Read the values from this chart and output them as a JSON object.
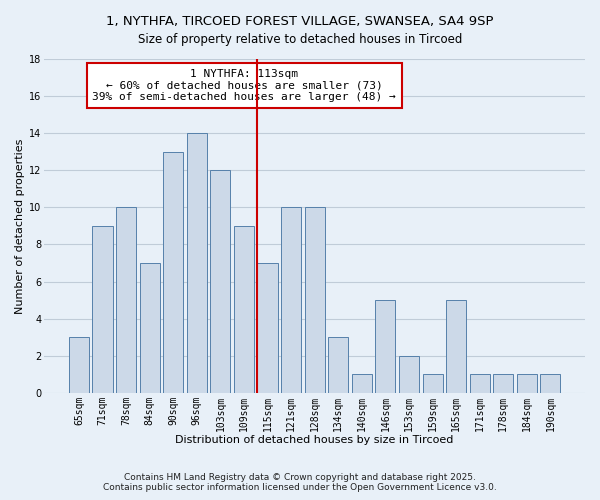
{
  "title": "1, NYTHFA, TIRCOED FOREST VILLAGE, SWANSEA, SA4 9SP",
  "subtitle": "Size of property relative to detached houses in Tircoed",
  "xlabel": "Distribution of detached houses by size in Tircoed",
  "ylabel": "Number of detached properties",
  "bar_labels": [
    "65sqm",
    "71sqm",
    "78sqm",
    "84sqm",
    "90sqm",
    "96sqm",
    "103sqm",
    "109sqm",
    "115sqm",
    "121sqm",
    "128sqm",
    "134sqm",
    "140sqm",
    "146sqm",
    "153sqm",
    "159sqm",
    "165sqm",
    "171sqm",
    "178sqm",
    "184sqm",
    "190sqm"
  ],
  "bar_values": [
    3,
    9,
    10,
    7,
    13,
    14,
    12,
    9,
    7,
    10,
    10,
    3,
    1,
    5,
    2,
    1,
    5,
    1,
    1,
    1,
    1
  ],
  "bar_color": "#ccd9e8",
  "bar_edge_color": "#5580aa",
  "vline_x_index": 8,
  "vline_color": "#cc0000",
  "ylim": [
    0,
    18
  ],
  "yticks": [
    0,
    2,
    4,
    6,
    8,
    10,
    12,
    14,
    16,
    18
  ],
  "annotation_title": "1 NYTHFA: 113sqm",
  "annotation_line1": "← 60% of detached houses are smaller (73)",
  "annotation_line2": "39% of semi-detached houses are larger (48) →",
  "footnote1": "Contains HM Land Registry data © Crown copyright and database right 2025.",
  "footnote2": "Contains public sector information licensed under the Open Government Licence v3.0.",
  "bg_color": "#e8f0f8",
  "plot_bg_color": "#e8f0f8",
  "grid_color": "#c0ccd8",
  "title_fontsize": 9.5,
  "subtitle_fontsize": 8.5,
  "axis_label_fontsize": 8,
  "tick_fontsize": 7,
  "annotation_fontsize": 8,
  "footnote_fontsize": 6.5
}
